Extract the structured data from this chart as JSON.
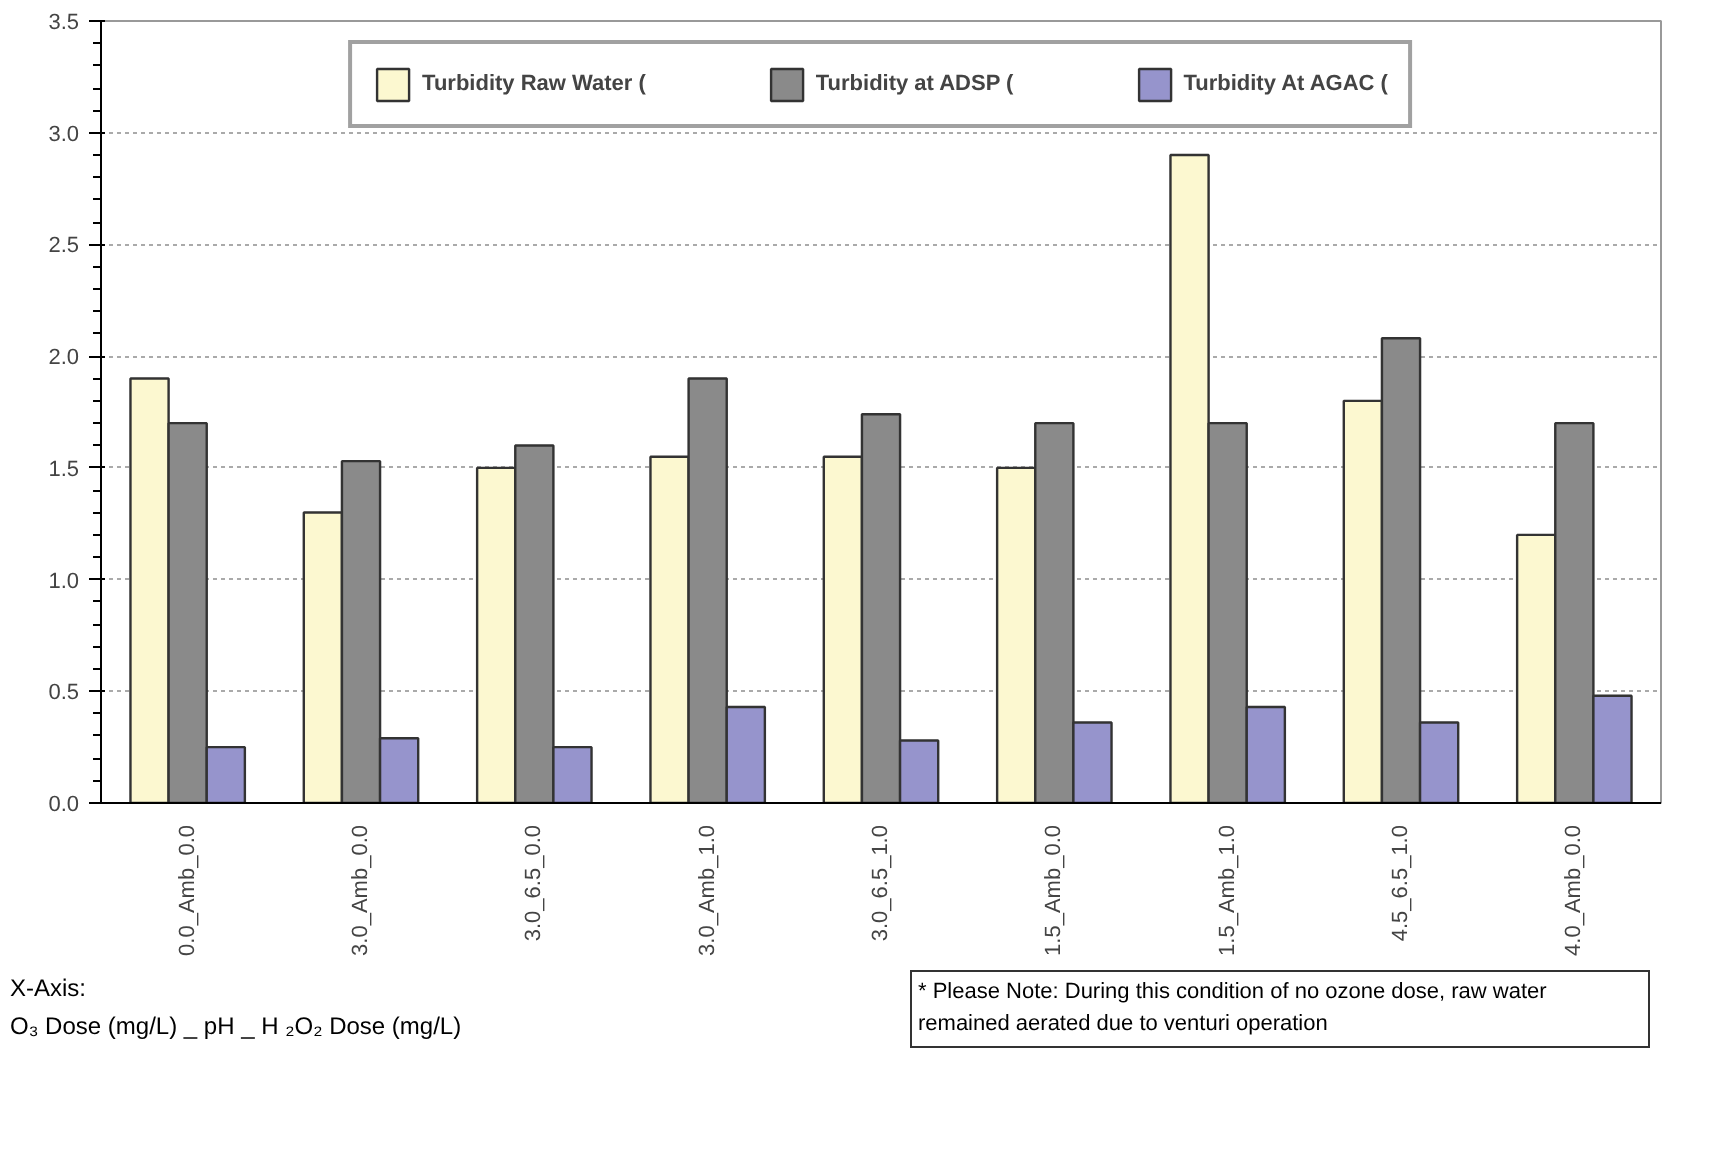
{
  "chart_data": {
    "type": "bar",
    "categories": [
      "0.0_Amb_0.0",
      "3.0_Amb_0.0",
      "3.0_6.5_0.0",
      "3.0_Amb_1.0",
      "3.0_6.5_1.0",
      "1.5_Amb_0.0",
      "1.5_Amb_1.0",
      "4.5_6.5_1.0",
      "4.0_Amb_0.0"
    ],
    "series": [
      {
        "name": "Turbidity Raw Water (",
        "color": "#fcf8d0",
        "values": [
          1.9,
          1.3,
          1.5,
          1.55,
          1.55,
          1.5,
          2.9,
          1.8,
          1.2
        ]
      },
      {
        "name": "Turbidity at ADSP (",
        "color": "#8a8a8a",
        "values": [
          1.7,
          1.53,
          1.6,
          1.9,
          1.74,
          1.7,
          1.7,
          2.08,
          1.7
        ]
      },
      {
        "name": "Turbidity At AGAC (",
        "color": "#9694cc",
        "values": [
          0.25,
          0.29,
          0.25,
          0.43,
          0.28,
          0.36,
          0.43,
          0.36,
          0.48
        ]
      }
    ],
    "xlabel": "X-Axis:\nO₃ Dose (mg/L) _ pH _ H ₂O₂ Dose (mg/L)",
    "annotations": [
      "* Please Note: During this condition of no ozone dose, raw water remained aerated due to venturi operation"
    ],
    "ylim": [
      0,
      3.5
    ],
    "yticks": [
      {
        "value": 0,
        "label": "0.0"
      },
      0.5,
      {
        "value": 1,
        "label": "1.0"
      },
      1.5,
      {
        "value": 2,
        "label": "2.0"
      },
      2.5,
      {
        "value": 3,
        "label": "3.0"
      },
      3.5
    ],
    "grid": "y",
    "legend": "top"
  }
}
